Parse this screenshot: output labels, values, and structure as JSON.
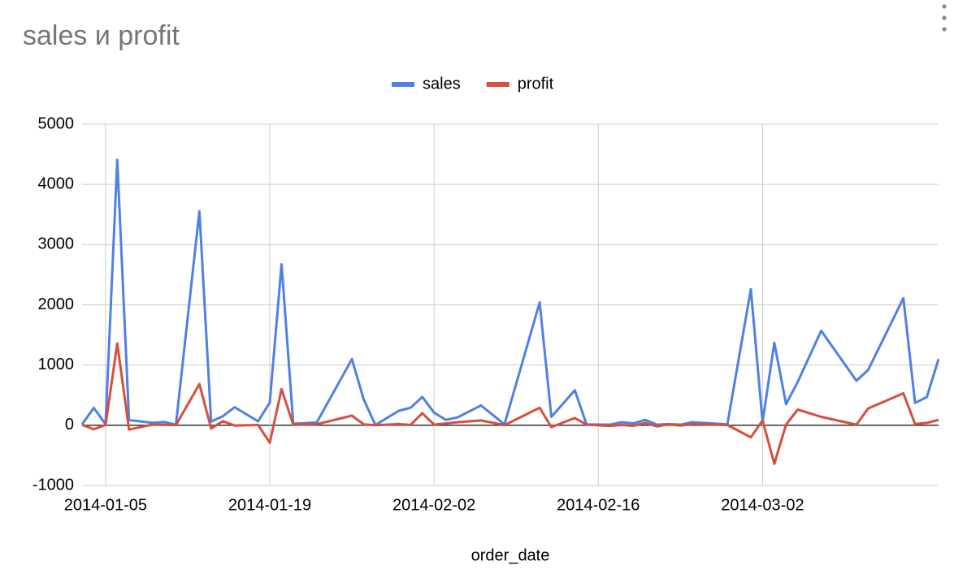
{
  "chart_data": {
    "type": "line",
    "title": "sales и profit",
    "x_label": "order_date",
    "x": [
      "2014-01-03",
      "2014-01-04",
      "2014-01-05",
      "2014-01-06",
      "2014-01-07",
      "2014-01-09",
      "2014-01-10",
      "2014-01-11",
      "2014-01-13",
      "2014-01-14",
      "2014-01-15",
      "2014-01-16",
      "2014-01-18",
      "2014-01-19",
      "2014-01-20",
      "2014-01-21",
      "2014-01-23",
      "2014-01-26",
      "2014-01-27",
      "2014-01-28",
      "2014-01-30",
      "2014-01-31",
      "2014-02-01",
      "2014-02-02",
      "2014-02-03",
      "2014-02-04",
      "2014-02-06",
      "2014-02-08",
      "2014-02-11",
      "2014-02-12",
      "2014-02-14",
      "2014-02-15",
      "2014-02-17",
      "2014-02-18",
      "2014-02-19",
      "2014-02-20",
      "2014-02-21",
      "2014-02-22",
      "2014-02-23",
      "2014-02-24",
      "2014-02-27",
      "2014-03-01",
      "2014-03-02",
      "2014-03-03",
      "2014-03-04",
      "2014-03-05",
      "2014-03-07",
      "2014-03-10",
      "2014-03-11",
      "2014-03-14",
      "2014-03-15",
      "2014-03-16",
      "2014-03-17"
    ],
    "series": [
      {
        "name": "sales",
        "color": "#4f81e3",
        "values": [
          16,
          288,
          20,
          4407,
          87,
          40,
          55,
          10,
          3554,
          62,
          150,
          300,
          65,
          378,
          2674,
          25,
          46,
          1100,
          430,
          5,
          240,
          290,
          470,
          210,
          90,
          130,
          330,
          14,
          2040,
          140,
          580,
          15,
          10,
          50,
          30,
          90,
          10,
          20,
          10,
          50,
          15,
          2260,
          50,
          1370,
          350,
          720,
          1570,
          740,
          920,
          2110,
          370,
          470,
          1100
        ]
      },
      {
        "name": "profit",
        "color": "#d64f3c",
        "values": [
          6,
          -65,
          5,
          1358,
          -72,
          11,
          9,
          3,
          684,
          -54,
          66,
          -5,
          5,
          -290,
          600,
          10,
          16,
          160,
          15,
          2,
          20,
          5,
          200,
          10,
          30,
          50,
          80,
          2,
          290,
          -30,
          120,
          10,
          -10,
          5,
          -10,
          40,
          -20,
          15,
          -5,
          20,
          5,
          -200,
          80,
          -640,
          10,
          260,
          140,
          10,
          280,
          530,
          20,
          40,
          90
        ]
      }
    ],
    "xlim": [
      "2014-01-03",
      "2014-03-17"
    ],
    "xticks": [
      "2014-01-05",
      "2014-01-19",
      "2014-02-02",
      "2014-02-16",
      "2014-03-02"
    ],
    "ylim": [
      -1000,
      5000
    ],
    "yticks": [
      -1000,
      0,
      1000,
      2000,
      3000,
      4000,
      5000
    ],
    "grid": true
  }
}
